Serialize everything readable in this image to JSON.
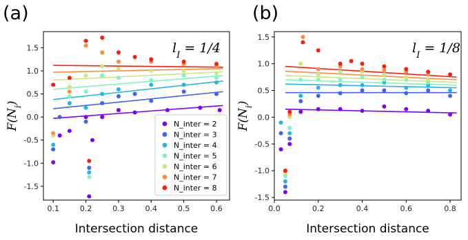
{
  "series_names": [
    "N_inter = 2",
    "N_inter = 3",
    "N_inter = 4",
    "N_inter = 5",
    "N_inter = 6",
    "N_inter = 7",
    "N_inter = 8"
  ],
  "series_colors": [
    "#7f00ff",
    "#3f61f6",
    "#1fb7e9",
    "#7ff3c0",
    "#c9e77a",
    "#ff8a40",
    "#ff1a0a"
  ],
  "chart_data": [
    {
      "type": "scatter",
      "panel_label": "(a)",
      "annotation": "l_I = 1/4",
      "xlabel": "Intersection distance",
      "ylabel": "F(N_i)",
      "xlim": [
        0.07,
        0.64
      ],
      "ylim": [
        -1.8,
        1.85
      ],
      "xticks": [
        0.1,
        0.2,
        0.3,
        0.4,
        0.5,
        0.6
      ],
      "xtick_labels": [
        "0.1",
        "0.2",
        "0.3",
        "0.4",
        "0.5",
        "0.6"
      ],
      "yticks": [
        -1.5,
        -1.0,
        -0.5,
        0.0,
        0.5,
        1.0,
        1.5
      ],
      "ytick_labels": [
        "-1.5",
        "-1.0",
        "-0.5",
        "0.0",
        "0.5",
        "1.0",
        "1.5"
      ],
      "grid": false,
      "legend": "lower-right",
      "x_range": [
        0.1,
        0.62
      ],
      "fit_lines": [
        {
          "name": "N_inter = 2",
          "x": [
            0.1,
            0.62
          ],
          "y": [
            -0.03,
            0.25
          ]
        },
        {
          "name": "N_inter = 3",
          "x": [
            0.1,
            0.62
          ],
          "y": [
            0.18,
            0.55
          ]
        },
        {
          "name": "N_inter = 4",
          "x": [
            0.1,
            0.62
          ],
          "y": [
            0.38,
            0.78
          ]
        },
        {
          "name": "N_inter = 5",
          "x": [
            0.1,
            0.62
          ],
          "y": [
            0.6,
            0.9
          ]
        },
        {
          "name": "N_inter = 6",
          "x": [
            0.1,
            0.62
          ],
          "y": [
            0.8,
            0.98
          ]
        },
        {
          "name": "N_inter = 7",
          "x": [
            0.1,
            0.62
          ],
          "y": [
            0.97,
            1.05
          ]
        },
        {
          "name": "N_inter = 8",
          "x": [
            0.1,
            0.62
          ],
          "y": [
            1.12,
            1.08
          ]
        }
      ],
      "scatter_points": [
        {
          "name": "N_inter = 2",
          "x": [
            0.1,
            0.12,
            0.15,
            0.2,
            0.21,
            0.22,
            0.25,
            0.3,
            0.35,
            0.45,
            0.55,
            0.61
          ],
          "y": [
            -0.98,
            -0.4,
            -0.3,
            0.0,
            -1.72,
            -0.5,
            0.0,
            0.15,
            0.1,
            0.15,
            0.2,
            0.15
          ]
        },
        {
          "name": "N_inter = 3",
          "x": [
            0.1,
            0.12,
            0.2,
            0.21,
            0.25,
            0.3,
            0.35,
            0.4,
            0.5,
            0.6
          ],
          "y": [
            -0.7,
            0.0,
            -0.1,
            -1.1,
            0.3,
            0.45,
            0.5,
            0.35,
            0.55,
            0.5
          ]
        },
        {
          "name": "N_inter = 4",
          "x": [
            0.1,
            0.15,
            0.2,
            0.21,
            0.25,
            0.3,
            0.4,
            0.5,
            0.6
          ],
          "y": [
            -0.6,
            0.3,
            0.2,
            -1.2,
            0.5,
            0.6,
            0.7,
            0.7,
            0.75
          ]
        },
        {
          "name": "N_inter = 5",
          "x": [
            0.1,
            0.15,
            0.2,
            0.21,
            0.25,
            0.3,
            0.4,
            0.5,
            0.6
          ],
          "y": [
            -0.4,
            0.45,
            0.55,
            -1.3,
            0.9,
            0.85,
            0.8,
            0.9,
            0.85
          ]
        },
        {
          "name": "N_inter = 6",
          "x": [
            0.1,
            0.15,
            0.2,
            0.25,
            0.3,
            0.4,
            0.5,
            0.6
          ],
          "y": [
            -0.4,
            0.65,
            0.9,
            1.1,
            1.05,
            1.0,
            1.0,
            0.95
          ]
        },
        {
          "name": "N_inter = 7",
          "x": [
            0.1,
            0.15,
            0.2,
            0.25,
            0.3,
            0.4,
            0.5,
            0.6
          ],
          "y": [
            -0.35,
            0.55,
            1.55,
            1.4,
            1.2,
            1.2,
            1.15,
            1.1
          ]
        },
        {
          "name": "N_inter = 8",
          "x": [
            0.1,
            0.15,
            0.2,
            0.21,
            0.25,
            0.3,
            0.35,
            0.4,
            0.5,
            0.6
          ],
          "y": [
            0.7,
            0.85,
            1.65,
            -0.95,
            1.72,
            1.4,
            1.3,
            1.25,
            1.2,
            1.15
          ]
        }
      ]
    },
    {
      "type": "scatter",
      "panel_label": "(b)",
      "annotation": "l_I = 1/8",
      "xlabel": "Intersection distance",
      "ylabel": "F(N_i)",
      "xlim": [
        0.0,
        0.85
      ],
      "ylim": [
        -1.55,
        1.6
      ],
      "xticks": [
        0.0,
        0.2,
        0.4,
        0.6,
        0.8
      ],
      "xtick_labels": [
        "0.0",
        "0.2",
        "0.4",
        "0.6",
        "0.8"
      ],
      "yticks": [
        -1.5,
        -1.0,
        -0.5,
        0.0,
        0.5,
        1.0,
        1.5
      ],
      "ytick_labels": [
        "-1.5",
        "-1.0",
        "-0.5",
        "0.0",
        "0.5",
        "1.0",
        "1.5"
      ],
      "grid": false,
      "x_range": [
        0.05,
        0.83
      ],
      "fit_lines": [
        {
          "name": "N_inter = 2",
          "x": [
            0.05,
            0.83
          ],
          "y": [
            0.15,
            0.08
          ]
        },
        {
          "name": "N_inter = 3",
          "x": [
            0.05,
            0.83
          ],
          "y": [
            0.46,
            0.46
          ]
        },
        {
          "name": "N_inter = 4",
          "x": [
            0.05,
            0.83
          ],
          "y": [
            0.62,
            0.55
          ]
        },
        {
          "name": "N_inter = 5",
          "x": [
            0.05,
            0.83
          ],
          "y": [
            0.7,
            0.6
          ]
        },
        {
          "name": "N_inter = 6",
          "x": [
            0.05,
            0.83
          ],
          "y": [
            0.78,
            0.65
          ]
        },
        {
          "name": "N_inter = 7",
          "x": [
            0.05,
            0.83
          ],
          "y": [
            0.86,
            0.7
          ]
        },
        {
          "name": "N_inter = 8",
          "x": [
            0.05,
            0.83
          ],
          "y": [
            0.95,
            0.75
          ]
        }
      ],
      "scatter_points": [
        {
          "name": "N_inter = 2",
          "x": [
            0.03,
            0.05,
            0.07,
            0.12,
            0.2,
            0.3,
            0.4,
            0.5,
            0.6,
            0.7,
            0.8
          ],
          "y": [
            -0.6,
            -1.4,
            -0.5,
            0.1,
            0.15,
            0.15,
            0.12,
            0.2,
            0.15,
            0.12,
            0.05
          ]
        },
        {
          "name": "N_inter = 3",
          "x": [
            0.03,
            0.05,
            0.07,
            0.12,
            0.2,
            0.3,
            0.4,
            0.5,
            0.6,
            0.7,
            0.8
          ],
          "y": [
            -0.3,
            -1.3,
            -0.4,
            0.3,
            0.4,
            0.45,
            0.5,
            0.5,
            0.45,
            0.5,
            0.4
          ]
        },
        {
          "name": "N_inter = 4",
          "x": [
            0.03,
            0.05,
            0.07,
            0.12,
            0.2,
            0.3,
            0.4,
            0.5,
            0.6,
            0.7,
            0.8
          ],
          "y": [
            -0.1,
            -1.2,
            -0.3,
            0.4,
            0.55,
            0.6,
            0.6,
            0.65,
            0.55,
            0.6,
            0.5
          ]
        },
        {
          "name": "N_inter = 5",
          "x": [
            0.05,
            0.07,
            0.12,
            0.2,
            0.3,
            0.4,
            0.5,
            0.6,
            0.7
          ],
          "y": [
            -1.1,
            -0.2,
            0.7,
            0.7,
            0.7,
            0.75,
            0.7,
            0.7,
            0.65
          ]
        },
        {
          "name": "N_inter = 6",
          "x": [
            0.05,
            0.07,
            0.12,
            0.2,
            0.3,
            0.4,
            0.5,
            0.6,
            0.7
          ],
          "y": [
            -1.05,
            0.0,
            1.0,
            0.8,
            0.85,
            0.85,
            0.8,
            0.75,
            0.7
          ]
        },
        {
          "name": "N_inter = 7",
          "x": [
            0.05,
            0.07,
            0.13,
            0.2,
            0.3,
            0.4,
            0.5,
            0.6,
            0.7
          ],
          "y": [
            -1.0,
            0.05,
            1.5,
            0.9,
            0.95,
            0.9,
            0.88,
            0.85,
            0.8
          ]
        },
        {
          "name": "N_inter = 8",
          "x": [
            0.05,
            0.07,
            0.13,
            0.2,
            0.3,
            0.35,
            0.4,
            0.5,
            0.6,
            0.7,
            0.8
          ],
          "y": [
            -1.0,
            0.1,
            1.4,
            1.25,
            1.0,
            1.05,
            1.0,
            0.95,
            0.9,
            0.85,
            0.8
          ]
        }
      ]
    }
  ]
}
